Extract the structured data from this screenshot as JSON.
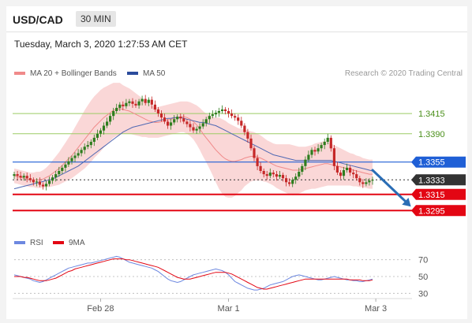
{
  "header": {
    "symbol": "USD/CAD",
    "timeframe": "30 MIN",
    "datetime": "Tuesday, March 3, 2020 1:27:53 AM CET"
  },
  "legend": {
    "ma20_bb": "MA 20 + Bollinger Bands",
    "ma50": "MA 50",
    "credit": "Research © 2020 Trading Central"
  },
  "rsi_legend": {
    "rsi": "RSI",
    "ma9": "9MA"
  },
  "colors": {
    "up": "#2e7d1e",
    "down": "#c62828",
    "band": "#f8c9c9",
    "ma20": "#f08a8a",
    "ma50": "#4f68b3",
    "resistance": "#9ccc65",
    "resistance_text": "#4a8f1a",
    "pivot": "#1f5fd6",
    "support": "#e30613",
    "current": "#333333",
    "rsi_line": "#6d88e0",
    "rsi_ma": "#e30613"
  },
  "chart_data": {
    "type": "candlestick",
    "title": "USD/CAD",
    "timeframe": "30 MIN",
    "ylim": [
      1.327,
      1.3455
    ],
    "x_ticks": [
      {
        "label": "Feb 28",
        "index": 27
      },
      {
        "label": "Mar 1",
        "index": 67
      },
      {
        "label": "Mar 3",
        "index": 113
      }
    ],
    "y_labels": [
      "1.3415",
      "1.3390",
      "1.3355",
      "1.3333",
      "1.3315",
      "1.3295"
    ],
    "close": [
      1.334,
      1.3338,
      1.3336,
      1.3338,
      1.3335,
      1.3333,
      1.333,
      1.3331,
      1.3327,
      1.3325,
      1.3328,
      1.3332,
      1.3336,
      1.334,
      1.3344,
      1.3348,
      1.3352,
      1.3356,
      1.336,
      1.3363,
      1.3366,
      1.337,
      1.3374,
      1.3376,
      1.338,
      1.3385,
      1.339,
      1.3394,
      1.34,
      1.3405,
      1.3412,
      1.3418,
      1.3422,
      1.3426,
      1.3424,
      1.3428,
      1.343,
      1.3427,
      1.3425,
      1.343,
      1.3433,
      1.3428,
      1.3432,
      1.3426,
      1.342,
      1.3415,
      1.341,
      1.3405,
      1.34,
      1.3404,
      1.3408,
      1.3411,
      1.3409,
      1.3405,
      1.3402,
      1.3398,
      1.3394,
      1.3396,
      1.3399,
      1.3403,
      1.3408,
      1.3412,
      1.3414,
      1.3416,
      1.3418,
      1.342,
      1.3418,
      1.3415,
      1.3412,
      1.341,
      1.3406,
      1.34,
      1.3392,
      1.3384,
      1.3372,
      1.336,
      1.335,
      1.3344,
      1.334,
      1.3338,
      1.3342,
      1.334,
      1.3337,
      1.3339,
      1.3335,
      1.333,
      1.3328,
      1.3333,
      1.3337,
      1.3343,
      1.335,
      1.3358,
      1.3364,
      1.337,
      1.3368,
      1.3372,
      1.3376,
      1.338,
      1.3385,
      1.3372,
      1.335,
      1.3342,
      1.3338,
      1.3345,
      1.3348,
      1.3342,
      1.334,
      1.3335,
      1.333,
      1.3328,
      1.333,
      1.3332,
      1.3333
    ],
    "ma20": [
      1.3338,
      1.3337,
      1.3336,
      1.3335,
      1.3334,
      1.3333,
      1.3333,
      1.3333,
      1.3333,
      1.3334,
      1.3336,
      1.3338,
      1.3341,
      1.3344,
      1.3347,
      1.3351,
      1.3355,
      1.3359,
      1.3363,
      1.3368,
      1.3373,
      1.3378,
      1.3383,
      1.3388,
      1.3393,
      1.3398,
      1.3402,
      1.3406,
      1.341,
      1.3413,
      1.3416,
      1.3419,
      1.342,
      1.3421,
      1.342,
      1.3419,
      1.3418,
      1.3416,
      1.3414,
      1.3412,
      1.341,
      1.3408,
      1.3406,
      1.3405,
      1.3404,
      1.3404,
      1.3405,
      1.3406,
      1.3407,
      1.3408,
      1.3409,
      1.341,
      1.3411,
      1.3411,
      1.341,
      1.3408,
      1.3405,
      1.3401,
      1.3396,
      1.339,
      1.3385,
      1.338,
      1.3375,
      1.337,
      1.3366,
      1.3362,
      1.3359,
      1.3357,
      1.3356,
      1.3356,
      1.3357,
      1.3358,
      1.336,
      1.3361,
      1.3362,
      1.3362,
      1.3361,
      1.336,
      1.3358,
      1.3356,
      1.3354,
      1.3352,
      1.335,
      1.3349,
      1.3348,
      1.3347,
      1.3346,
      1.3345,
      1.3345,
      1.3345,
      1.3346,
      1.3347,
      1.3348,
      1.3349,
      1.335,
      1.3351,
      1.3352,
      1.3353,
      1.3353,
      1.3352,
      1.3351,
      1.335,
      1.3349,
      1.3348,
      1.3347,
      1.3346,
      1.3345,
      1.3344,
      1.3343,
      1.3342,
      1.3341,
      1.334,
      1.334
    ],
    "ma50": [
      1.3322,
      1.3323,
      1.3324,
      1.3325,
      1.3326,
      1.3327,
      1.3328,
      1.3329,
      1.333,
      1.3331,
      1.3332,
      1.3333,
      1.3334,
      1.3336,
      1.3338,
      1.334,
      1.3342,
      1.3344,
      1.3346,
      1.3348,
      1.335,
      1.3353,
      1.3356,
      1.3359,
      1.3362,
      1.3365,
      1.3368,
      1.3371,
      1.3374,
      1.3377,
      1.338,
      1.3383,
      1.3386,
      1.3389,
      1.3392,
      1.3394,
      1.3396,
      1.3398,
      1.3399,
      1.34,
      1.3401,
      1.3402,
      1.3403,
      1.3404,
      1.3405,
      1.3406,
      1.3407,
      1.3408,
      1.3409,
      1.3409,
      1.341,
      1.341,
      1.341,
      1.3409,
      1.3408,
      1.3407,
      1.3406,
      1.3405,
      1.3404,
      1.3404,
      1.3403,
      1.3402,
      1.3401,
      1.34,
      1.3398,
      1.3396,
      1.3394,
      1.3392,
      1.339,
      1.3388,
      1.3386,
      1.3384,
      1.3382,
      1.338,
      1.3378,
      1.3376,
      1.3374,
      1.3372,
      1.337,
      1.3368,
      1.3366,
      1.3364,
      1.3363,
      1.3362,
      1.3361,
      1.336,
      1.3359,
      1.3358,
      1.3357,
      1.3357,
      1.3357,
      1.3357,
      1.3357,
      1.3357,
      1.3357,
      1.3357,
      1.3357,
      1.3357,
      1.3357,
      1.3357,
      1.3356,
      1.3355,
      1.3354,
      1.3353,
      1.3352,
      1.3351,
      1.335,
      1.3349,
      1.3348,
      1.3347,
      1.3346,
      1.3345,
      1.3344
    ],
    "bb_width": [
      0.0009,
      0.0009,
      0.0009,
      0.0009,
      0.0009,
      0.0009,
      0.0009,
      0.001,
      0.001,
      0.0011,
      0.0012,
      0.0014,
      0.0016,
      0.0018,
      0.002,
      0.0022,
      0.0024,
      0.0026,
      0.0028,
      0.003,
      0.0032,
      0.0034,
      0.0036,
      0.0037,
      0.0038,
      0.0038,
      0.0038,
      0.0038,
      0.0037,
      0.0036,
      0.0035,
      0.0034,
      0.0033,
      0.0032,
      0.003,
      0.0029,
      0.0028,
      0.0027,
      0.0026,
      0.0025,
      0.0024,
      0.0022,
      0.0021,
      0.002,
      0.0019,
      0.0019,
      0.0019,
      0.0019,
      0.0019,
      0.0019,
      0.0019,
      0.0019,
      0.0019,
      0.0019,
      0.002,
      0.0021,
      0.0022,
      0.0024,
      0.0026,
      0.0028,
      0.003,
      0.0033,
      0.0036,
      0.004,
      0.0044,
      0.0046,
      0.0047,
      0.0046,
      0.0045,
      0.0043,
      0.004,
      0.0038,
      0.0035,
      0.0033,
      0.0031,
      0.003,
      0.0029,
      0.0028,
      0.0027,
      0.0026,
      0.0026,
      0.0026,
      0.0027,
      0.0028,
      0.0029,
      0.003,
      0.0031,
      0.0031,
      0.003,
      0.0029,
      0.0028,
      0.0027,
      0.0027,
      0.0027,
      0.0028,
      0.0028,
      0.0028,
      0.0028,
      0.0027,
      0.0026,
      0.0025,
      0.0024,
      0.0023,
      0.0022,
      0.0021,
      0.002,
      0.002,
      0.0019,
      0.0019,
      0.0018,
      0.0018,
      0.0018,
      0.0018
    ],
    "levels": [
      {
        "label": "1.3415",
        "value": 1.3415,
        "kind": "resistance"
      },
      {
        "label": "1.3390",
        "value": 1.339,
        "kind": "resistance"
      },
      {
        "label": "1.3355",
        "value": 1.3355,
        "kind": "pivot"
      },
      {
        "label": "1.3333",
        "value": 1.3333,
        "kind": "current"
      },
      {
        "label": "1.3315",
        "value": 1.3315,
        "kind": "support"
      },
      {
        "label": "1.3295",
        "value": 1.3295,
        "kind": "support"
      }
    ],
    "forecast": {
      "from_index": 112,
      "from": 1.3345,
      "to_index": 124,
      "to": 1.33
    },
    "rsi": {
      "ylim": [
        20,
        80
      ],
      "levels": [
        30,
        50,
        70
      ],
      "level_labels": [
        "70",
        "50",
        "30"
      ],
      "values": [
        52,
        51,
        50,
        49,
        48,
        47,
        45,
        44,
        43,
        44,
        46,
        48,
        50,
        52,
        54,
        56,
        58,
        60,
        61,
        62,
        63,
        64,
        65,
        66,
        66,
        67,
        68,
        69,
        70,
        71,
        72,
        73,
        74,
        73,
        71,
        69,
        67,
        66,
        65,
        64,
        63,
        62,
        61,
        60,
        58,
        56,
        53,
        50,
        47,
        45,
        44,
        43,
        44,
        46,
        48,
        50,
        52,
        53,
        54,
        55,
        56,
        57,
        58,
        59,
        58,
        57,
        55,
        52,
        48,
        44,
        42,
        40,
        38,
        36,
        35,
        34,
        34,
        35,
        36,
        38,
        40,
        41,
        42,
        43,
        44,
        46,
        48,
        50,
        51,
        52,
        51,
        50,
        49,
        48,
        47,
        46,
        46,
        47,
        48,
        49,
        50,
        49,
        48,
        47,
        46,
        46,
        45,
        45,
        44,
        44,
        45,
        46,
        47
      ],
      "ma9": [
        50,
        50,
        50,
        49,
        49,
        48,
        47,
        46,
        45,
        45,
        45,
        46,
        47,
        48,
        50,
        52,
        54,
        56,
        57,
        59,
        60,
        61,
        62,
        63,
        64,
        65,
        66,
        67,
        68,
        69,
        70,
        71,
        71,
        71,
        71,
        70,
        70,
        69,
        68,
        67,
        66,
        65,
        64,
        63,
        62,
        61,
        59,
        57,
        55,
        53,
        51,
        49,
        48,
        47,
        47,
        47,
        48,
        49,
        50,
        51,
        52,
        53,
        54,
        55,
        55,
        55,
        55,
        54,
        53,
        51,
        49,
        47,
        45,
        43,
        41,
        39,
        37,
        36,
        35,
        35,
        36,
        37,
        38,
        39,
        40,
        41,
        42,
        43,
        44,
        45,
        46,
        47,
        47,
        47,
        47,
        47,
        47,
        47,
        47,
        47,
        47,
        47,
        47,
        47,
        47,
        46,
        46,
        46,
        46,
        45,
        45,
        45,
        46
      ]
    }
  }
}
